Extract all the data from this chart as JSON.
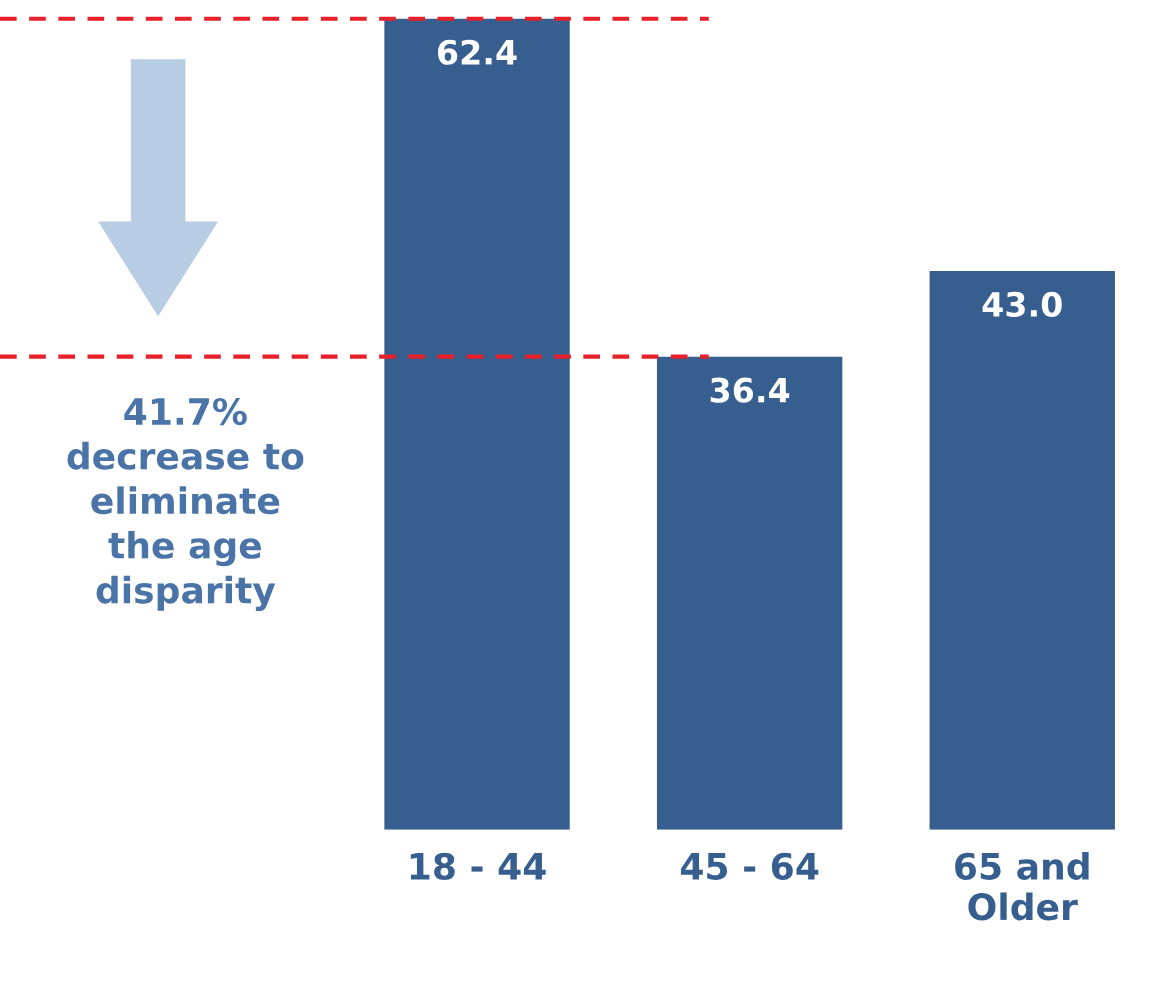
{
  "chart_data": {
    "type": "bar",
    "categories": [
      "18 - 44",
      "45 - 64",
      "65 and\nOlder"
    ],
    "values": [
      62.4,
      36.4,
      43.0
    ],
    "color": "#365e8f",
    "value_labels": [
      "62.4",
      "36.4",
      "43.0"
    ],
    "grid": false,
    "ref_lines": [
      {
        "axis": "y",
        "value": 62.4,
        "color": "#e8202a",
        "line_style": "dashed"
      },
      {
        "axis": "y",
        "value": 36.4,
        "color": "#e8202a",
        "line_style": "dashed"
      }
    ],
    "annotations": [
      "41.7%\ndecrease to\neliminate\nthe age\ndisparity"
    ]
  }
}
